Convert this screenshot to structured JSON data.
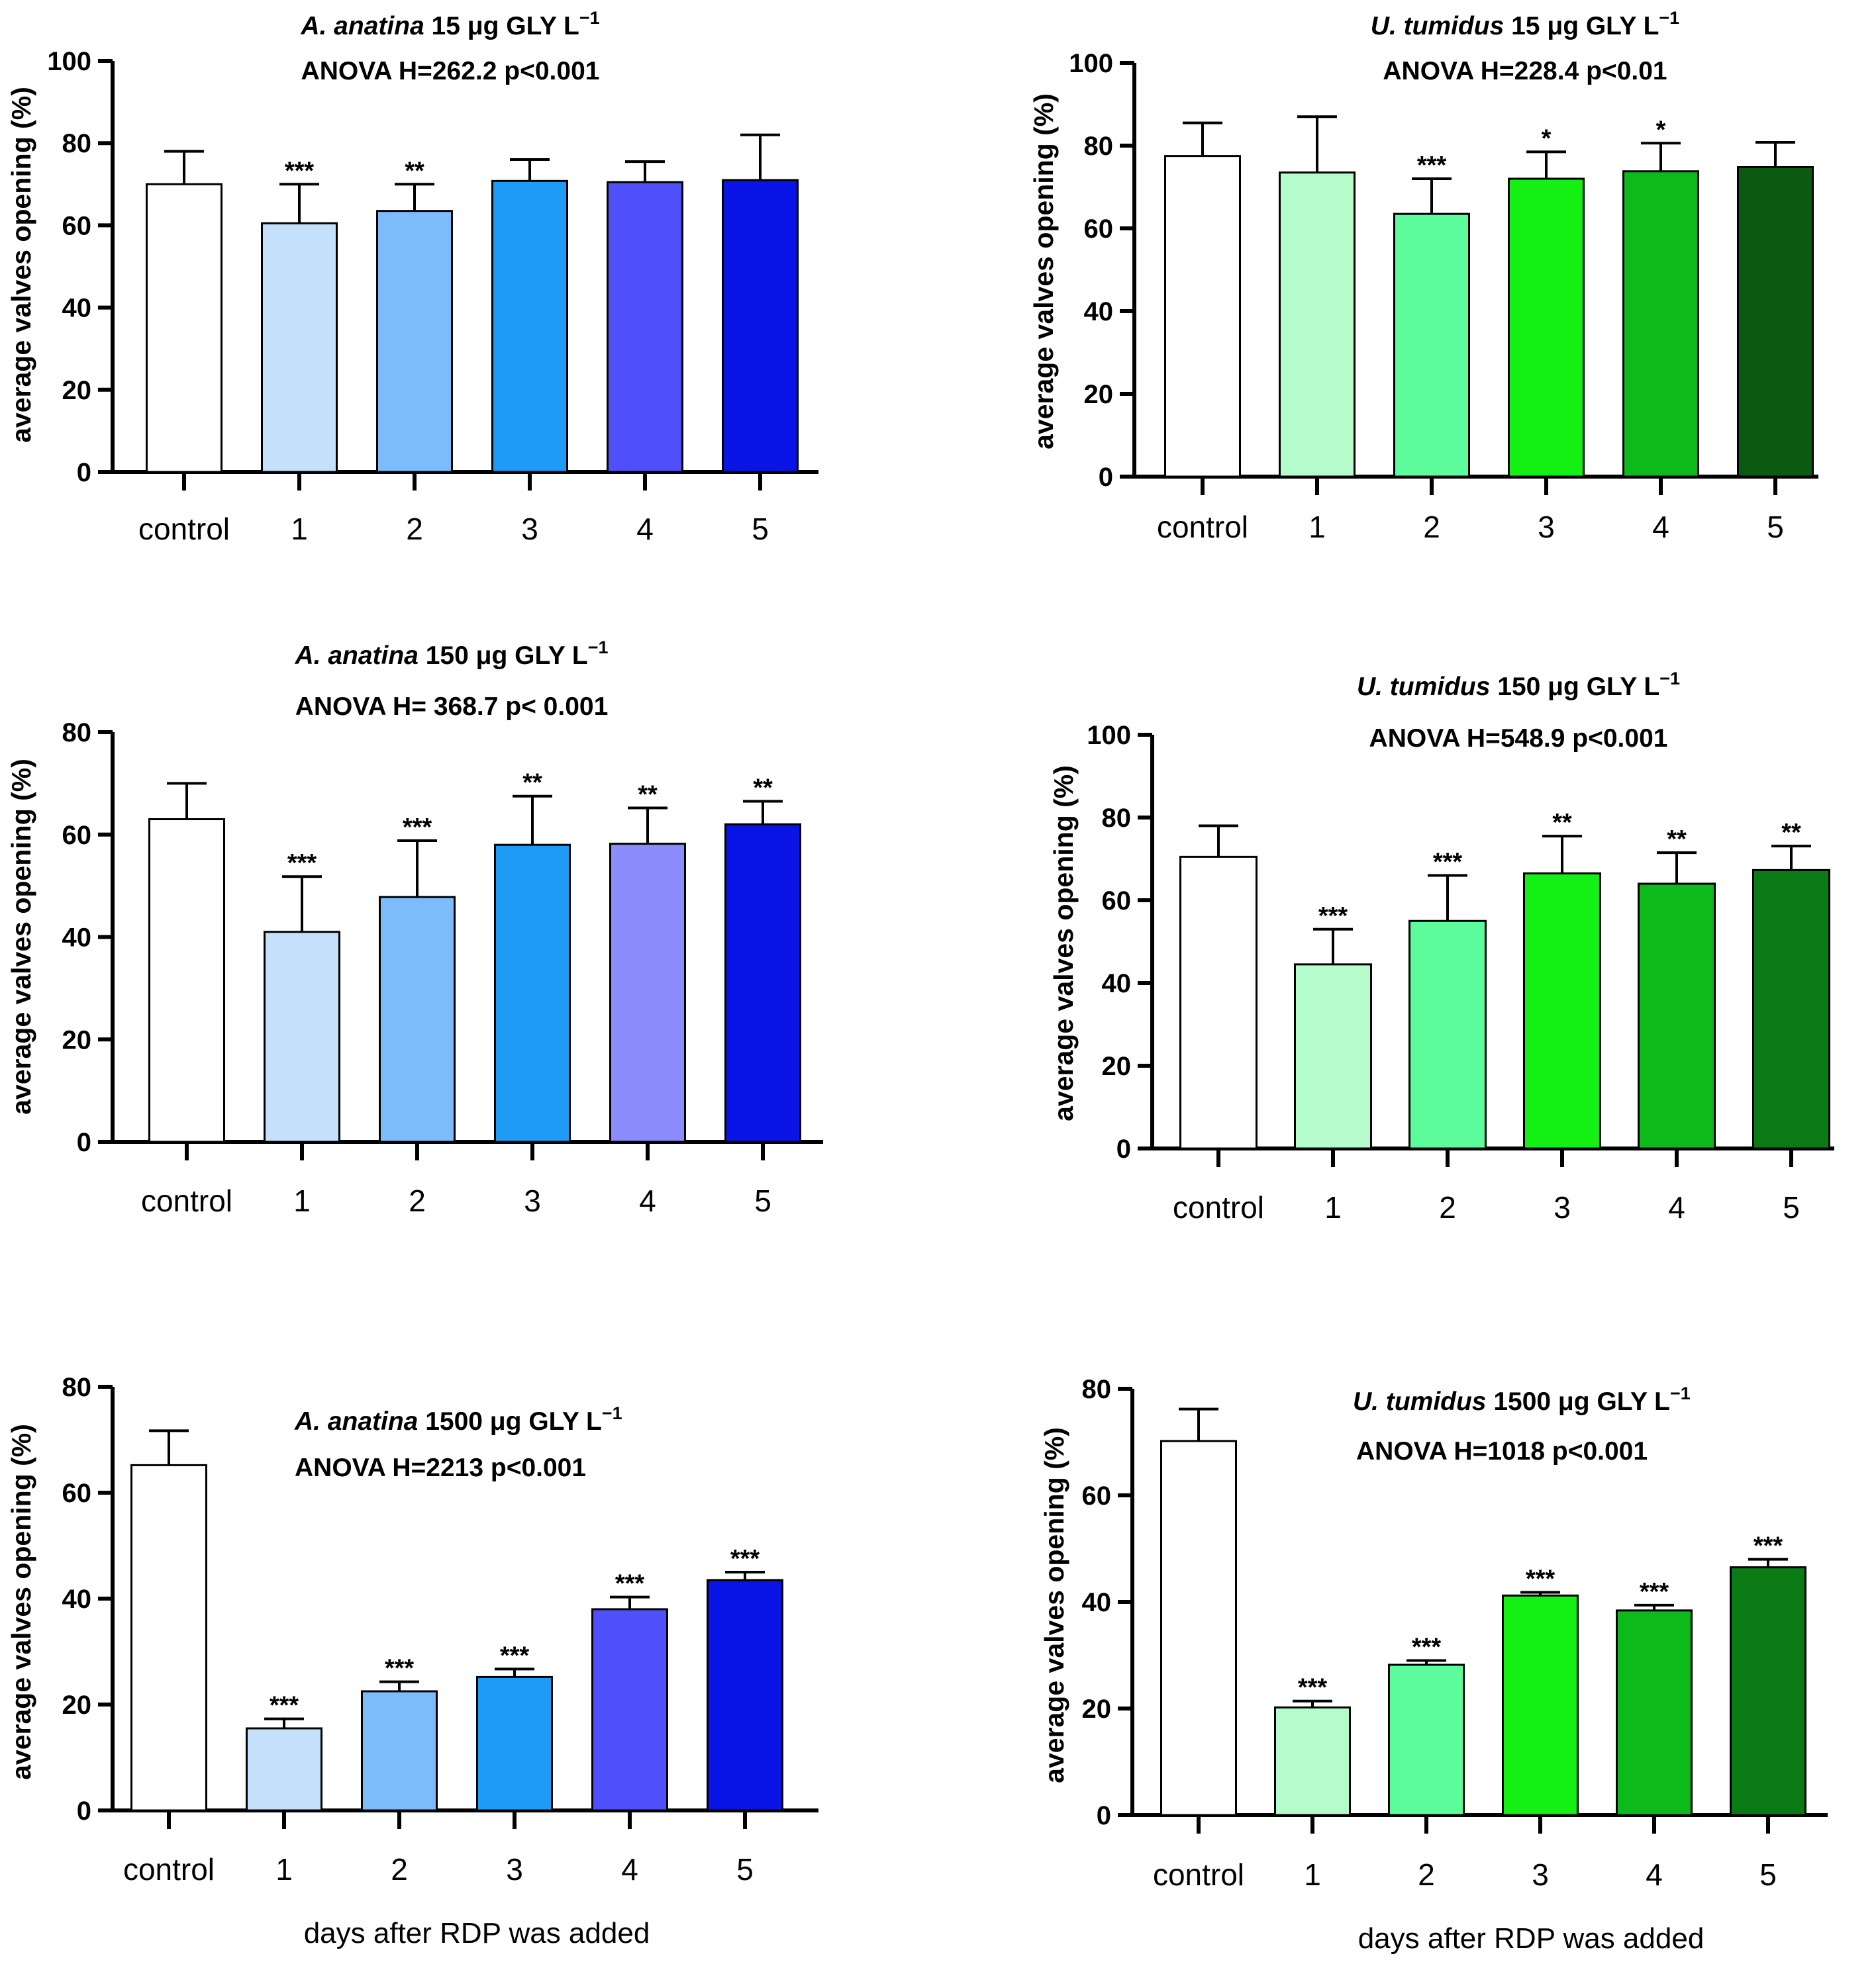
{
  "chart_data": [
    {
      "type": "bar",
      "title": {
        "species": "A. anatina",
        "dose": "15 μg GLY L",
        "exponent": "−1"
      },
      "subtitle": "ANOVA H=262.2 p<0.001",
      "ylabel": "average valves opening (%)",
      "xlabel": "",
      "ylim": [
        0,
        100
      ],
      "yticks": [
        0,
        20,
        40,
        60,
        80,
        100
      ],
      "categories": [
        "control",
        "1",
        "2",
        "3",
        "4",
        "5"
      ],
      "values": [
        70,
        60.5,
        63.5,
        70.8,
        70.5,
        71
      ],
      "errors": [
        8,
        9.5,
        6.5,
        5.2,
        5,
        11
      ],
      "significance": [
        "",
        "***",
        "**",
        "",
        "",
        ""
      ],
      "colors": [
        "#ffffff",
        "#c4e0fa",
        "#7dbcfa",
        "#1e9cf5",
        "#5050fa",
        "#0a14e6"
      ]
    },
    {
      "type": "bar",
      "title": {
        "species": "U. tumidus",
        "dose": "15 μg GLY L",
        "exponent": "−1"
      },
      "subtitle": "ANOVA H=228.4 p<0.01",
      "ylabel": "average valves opening (%)",
      "xlabel": "",
      "ylim": [
        0,
        100
      ],
      "yticks": [
        0,
        20,
        40,
        60,
        80,
        100
      ],
      "categories": [
        "control",
        "1",
        "2",
        "3",
        "4",
        "5"
      ],
      "values": [
        77.5,
        73.5,
        63.5,
        72,
        73.8,
        74.8
      ],
      "errors": [
        8,
        13.5,
        8.5,
        6.5,
        6.8,
        6
      ],
      "significance": [
        "",
        "",
        "***",
        "*",
        "*",
        ""
      ],
      "colors": [
        "#ffffff",
        "#b4fccc",
        "#5cfc9c",
        "#14f014",
        "#0cba1c",
        "#0a5a12"
      ]
    },
    {
      "type": "bar",
      "title": {
        "species": "A. anatina",
        "dose": "150 μg GLY L",
        "exponent": "−1"
      },
      "subtitle": "ANOVA H= 368.7 p< 0.001",
      "ylabel": "average valves opening (%)",
      "xlabel": "",
      "ylim": [
        0,
        80
      ],
      "yticks": [
        0,
        20,
        40,
        60,
        80
      ],
      "categories": [
        "control",
        "1",
        "2",
        "3",
        "4",
        "5"
      ],
      "values": [
        63,
        41,
        47.8,
        58,
        58.2,
        62
      ],
      "errors": [
        7,
        10.8,
        11,
        9.5,
        7,
        4.5
      ],
      "significance": [
        "",
        "***",
        "***",
        "**",
        "**",
        "**"
      ],
      "colors": [
        "#ffffff",
        "#c4e0fa",
        "#7dbcfa",
        "#1e9cf5",
        "#8c8cfc",
        "#0a14e6"
      ]
    },
    {
      "type": "bar",
      "title": {
        "species": "U. tumidus",
        "dose": "150 μg GLY L",
        "exponent": "−1"
      },
      "subtitle": "ANOVA H=548.9 p<0.001",
      "ylabel": "average valves opening (%)",
      "xlabel": "",
      "ylim": [
        0,
        100
      ],
      "yticks": [
        0,
        20,
        40,
        60,
        80,
        100
      ],
      "categories": [
        "control",
        "1",
        "2",
        "3",
        "4",
        "5"
      ],
      "values": [
        70.5,
        44.5,
        55,
        66.5,
        64,
        67.3
      ],
      "errors": [
        7.5,
        8.5,
        11,
        9,
        7.5,
        5.8
      ],
      "significance": [
        "",
        "***",
        "***",
        "**",
        "**",
        "**"
      ],
      "colors": [
        "#ffffff",
        "#b4fccc",
        "#5cfc9c",
        "#14f014",
        "#0cba1c",
        "#0a7a14"
      ]
    },
    {
      "type": "bar",
      "title": {
        "species": "A. anatina",
        "dose": "1500 μg GLY L",
        "exponent": "−1"
      },
      "subtitle": "ANOVA  H=2213  p<0.001",
      "ylabel": "average valves opening (%)",
      "xlabel": "days after RDP was added",
      "ylim": [
        0,
        80
      ],
      "yticks": [
        0,
        20,
        40,
        60,
        80
      ],
      "categories": [
        "control",
        "1",
        "2",
        "3",
        "4",
        "5"
      ],
      "values": [
        65.2,
        15.5,
        22.5,
        25.2,
        38,
        43.5
      ],
      "errors": [
        6.5,
        1.8,
        1.8,
        1.5,
        2.3,
        1.5
      ],
      "significance": [
        "",
        "***",
        "***",
        "***",
        "***",
        "***"
      ],
      "colors": [
        "#ffffff",
        "#c4e0fa",
        "#7dbcfa",
        "#1e9cf5",
        "#5050fa",
        "#0a14e6"
      ]
    },
    {
      "type": "bar",
      "title": {
        "species": "U. tumidus",
        "dose": "1500 μg GLY L",
        "exponent": "−1"
      },
      "subtitle": "ANOVA H=1018  p<0.001",
      "ylabel": "average valves opening (%)",
      "xlabel": "days after RDP was added",
      "ylim": [
        0,
        80
      ],
      "yticks": [
        0,
        20,
        40,
        60,
        80
      ],
      "categories": [
        "control",
        "1",
        "2",
        "3",
        "4",
        "5"
      ],
      "values": [
        70.2,
        20.2,
        28.2,
        41.2,
        38.4,
        46.5
      ],
      "errors": [
        6,
        1.2,
        0.8,
        0.6,
        1,
        1.5
      ],
      "significance": [
        "",
        "***",
        "***",
        "***",
        "***",
        "***"
      ],
      "colors": [
        "#ffffff",
        "#b4fccc",
        "#5cfc9c",
        "#14f014",
        "#0cba1c",
        "#0a7a14"
      ]
    }
  ]
}
